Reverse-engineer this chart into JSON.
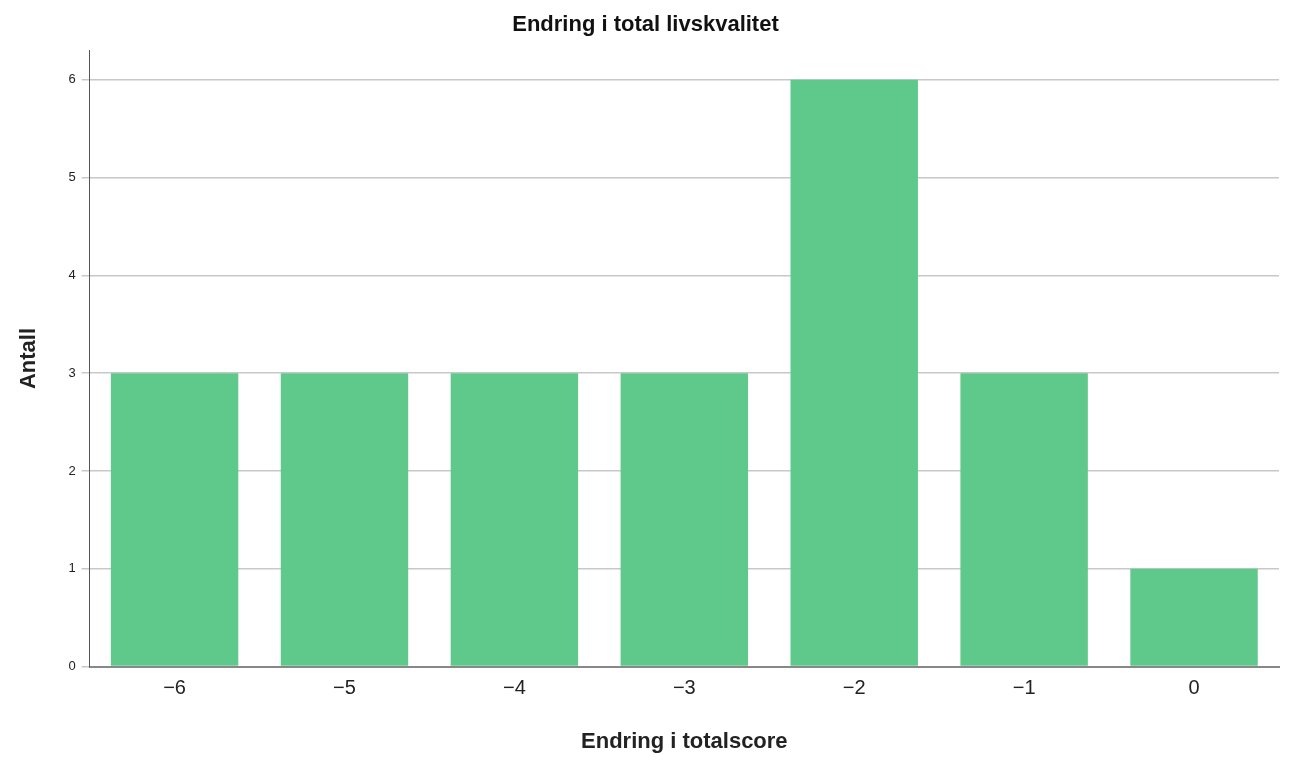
{
  "chart_data": {
    "type": "bar",
    "title": "Endring i total livskvalitet",
    "xlabel": "Endring i totalscore",
    "ylabel": "Antall",
    "categories": [
      "−6",
      "−5",
      "−4",
      "−3",
      "−2",
      "−1",
      "0"
    ],
    "values": [
      3,
      3,
      3,
      3,
      6,
      3,
      1
    ],
    "color": "#5ec98a",
    "ylim": [
      0,
      6.3
    ],
    "yticks": [
      0,
      1,
      2,
      3,
      4,
      5,
      6
    ],
    "grid": "y",
    "legend": false
  }
}
